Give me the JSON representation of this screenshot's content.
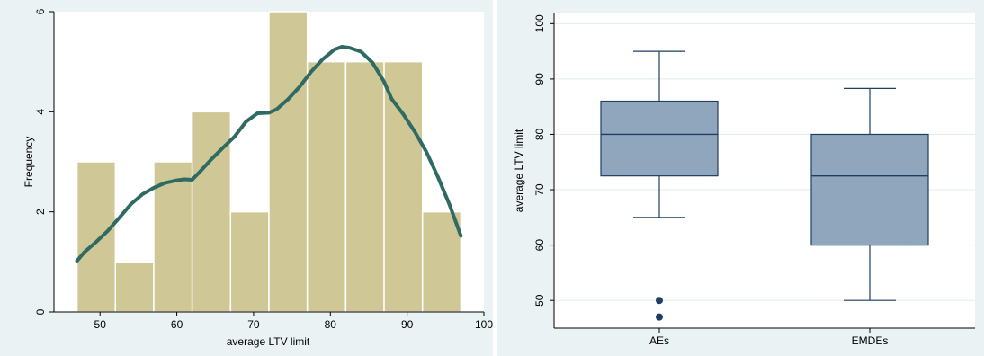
{
  "colors": {
    "page_bg": "#ffffff",
    "panel_bg": "#eaf2f3",
    "plot_bg": "#ffffff",
    "hist_fill": "#cfc795",
    "hist_stroke": "#ffffff",
    "kde_line": "#2f6b62",
    "box_fill": "#8fa6bc",
    "box_stroke": "#1c3f63",
    "outlier": "#1c3f63",
    "grid": "#e3ebec",
    "axis": "#000000"
  },
  "chart_data": [
    {
      "type": "bar",
      "subtype": "histogram_with_kde",
      "xlabel": "average LTV limit",
      "ylabel": "Frequency",
      "xlim": [
        44,
        100
      ],
      "ylim": [
        0,
        6
      ],
      "xticks": [
        50,
        60,
        70,
        80,
        90,
        100
      ],
      "yticks": [
        0,
        2,
        4,
        6
      ],
      "grid": false,
      "bins": [
        {
          "x0": 47,
          "x1": 52,
          "count": 3
        },
        {
          "x0": 52,
          "x1": 57,
          "count": 1
        },
        {
          "x0": 57,
          "x1": 62,
          "count": 3
        },
        {
          "x0": 62,
          "x1": 67,
          "count": 4
        },
        {
          "x0": 67,
          "x1": 72,
          "count": 2
        },
        {
          "x0": 72,
          "x1": 77,
          "count": 6
        },
        {
          "x0": 77,
          "x1": 82,
          "count": 5
        },
        {
          "x0": 82,
          "x1": 87,
          "count": 5
        },
        {
          "x0": 87,
          "x1": 92,
          "count": 5
        },
        {
          "x0": 92,
          "x1": 97,
          "count": 2
        }
      ],
      "kde_curve": [
        [
          47,
          1.02
        ],
        [
          48,
          1.2
        ],
        [
          49.5,
          1.4
        ],
        [
          51,
          1.62
        ],
        [
          52.5,
          1.88
        ],
        [
          54,
          2.15
        ],
        [
          55.5,
          2.35
        ],
        [
          57,
          2.48
        ],
        [
          58.5,
          2.58
        ],
        [
          60,
          2.63
        ],
        [
          61,
          2.65
        ],
        [
          62,
          2.64
        ],
        [
          63,
          2.8
        ],
        [
          64.5,
          3.05
        ],
        [
          66,
          3.28
        ],
        [
          67.5,
          3.5
        ],
        [
          69,
          3.8
        ],
        [
          70.5,
          3.97
        ],
        [
          72,
          3.98
        ],
        [
          73,
          4.05
        ],
        [
          74.5,
          4.25
        ],
        [
          76,
          4.5
        ],
        [
          77.5,
          4.8
        ],
        [
          79,
          5.05
        ],
        [
          80.5,
          5.24
        ],
        [
          81.5,
          5.3
        ],
        [
          82.5,
          5.28
        ],
        [
          84,
          5.2
        ],
        [
          85.5,
          4.98
        ],
        [
          87,
          4.6
        ],
        [
          88,
          4.25
        ],
        [
          89.5,
          3.95
        ],
        [
          91,
          3.6
        ],
        [
          92.5,
          3.2
        ],
        [
          94,
          2.7
        ],
        [
          95.5,
          2.15
        ],
        [
          97,
          1.52
        ]
      ]
    },
    {
      "type": "box",
      "ylabel": "average LTV limit",
      "categories": [
        "AEs",
        "EMDEs"
      ],
      "ylim": [
        45,
        102
      ],
      "yticks": [
        50,
        60,
        70,
        80,
        90,
        100
      ],
      "grid": true,
      "boxes": [
        {
          "category": "AEs",
          "whisker_low": 65,
          "q1": 72.5,
          "median": 80,
          "q3": 86,
          "whisker_high": 95,
          "outliers": [
            50,
            47
          ]
        },
        {
          "category": "EMDEs",
          "whisker_low": 50,
          "q1": 60,
          "median": 72.5,
          "q3": 80,
          "whisker_high": 88.3,
          "outliers": []
        }
      ]
    }
  ]
}
